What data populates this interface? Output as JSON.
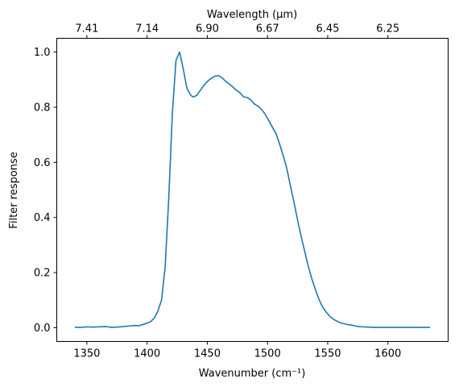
{
  "chart_data": {
    "type": "line",
    "xlabel": "Wavenumber (cm⁻¹)",
    "ylabel": "Filter response",
    "top_xlabel": "Wavelength (μm)",
    "xlim": [
      1325,
      1650
    ],
    "ylim": [
      -0.05,
      1.05
    ],
    "grid": false,
    "x_ticks": [
      1350,
      1400,
      1450,
      1500,
      1550,
      1600
    ],
    "x_tick_labels": [
      "1350",
      "1400",
      "1450",
      "1500",
      "1550",
      "1600"
    ],
    "y_ticks": [
      0.0,
      0.2,
      0.4,
      0.6,
      0.8,
      1.0
    ],
    "y_tick_labels": [
      "0.0",
      "0.2",
      "0.4",
      "0.6",
      "0.8",
      "1.0"
    ],
    "top_ticks": [
      1350,
      1400,
      1450,
      1500,
      1550,
      1600
    ],
    "top_tick_labels": [
      "7.41",
      "7.14",
      "6.90",
      "6.67",
      "6.45",
      "6.25"
    ],
    "series": [
      {
        "color": "#1f77b4",
        "x": [
          1340,
          1345,
          1350,
          1355,
          1360,
          1365,
          1368,
          1370,
          1375,
          1380,
          1385,
          1390,
          1393,
          1397,
          1400,
          1403,
          1406,
          1409,
          1412,
          1415,
          1418,
          1421,
          1424,
          1427,
          1430,
          1433,
          1436,
          1438,
          1441,
          1444,
          1447,
          1450,
          1453,
          1456,
          1459,
          1462,
          1465,
          1468,
          1471,
          1474,
          1477,
          1480,
          1483,
          1486,
          1489,
          1492,
          1495,
          1498,
          1501,
          1504,
          1507,
          1510,
          1513,
          1516,
          1519,
          1522,
          1525,
          1528,
          1531,
          1534,
          1537,
          1540,
          1543,
          1546,
          1549,
          1552,
          1555,
          1558,
          1561,
          1564,
          1567,
          1570,
          1573,
          1576,
          1579,
          1582,
          1585,
          1588,
          1591,
          1594,
          1597,
          1600,
          1605,
          1610,
          1615,
          1620,
          1625,
          1630,
          1635
        ],
        "y": [
          0.001,
          0.001,
          0.003,
          0.002,
          0.003,
          0.004,
          0.003,
          0.001,
          0.002,
          0.004,
          0.006,
          0.008,
          0.007,
          0.012,
          0.016,
          0.022,
          0.035,
          0.06,
          0.1,
          0.22,
          0.47,
          0.78,
          0.97,
          1.0,
          0.94,
          0.87,
          0.845,
          0.837,
          0.842,
          0.86,
          0.878,
          0.893,
          0.904,
          0.912,
          0.915,
          0.908,
          0.895,
          0.885,
          0.874,
          0.862,
          0.853,
          0.838,
          0.835,
          0.827,
          0.812,
          0.804,
          0.792,
          0.775,
          0.752,
          0.728,
          0.705,
          0.667,
          0.625,
          0.578,
          0.515,
          0.455,
          0.39,
          0.33,
          0.275,
          0.22,
          0.175,
          0.135,
          0.1,
          0.073,
          0.055,
          0.04,
          0.03,
          0.023,
          0.017,
          0.014,
          0.011,
          0.009,
          0.006,
          0.004,
          0.003,
          0.002,
          0.002,
          0.001,
          0.001,
          0.001,
          0.001,
          0.001,
          0.001,
          0.001,
          0.001,
          0.001,
          0.001,
          0.001,
          0.001
        ]
      }
    ]
  }
}
